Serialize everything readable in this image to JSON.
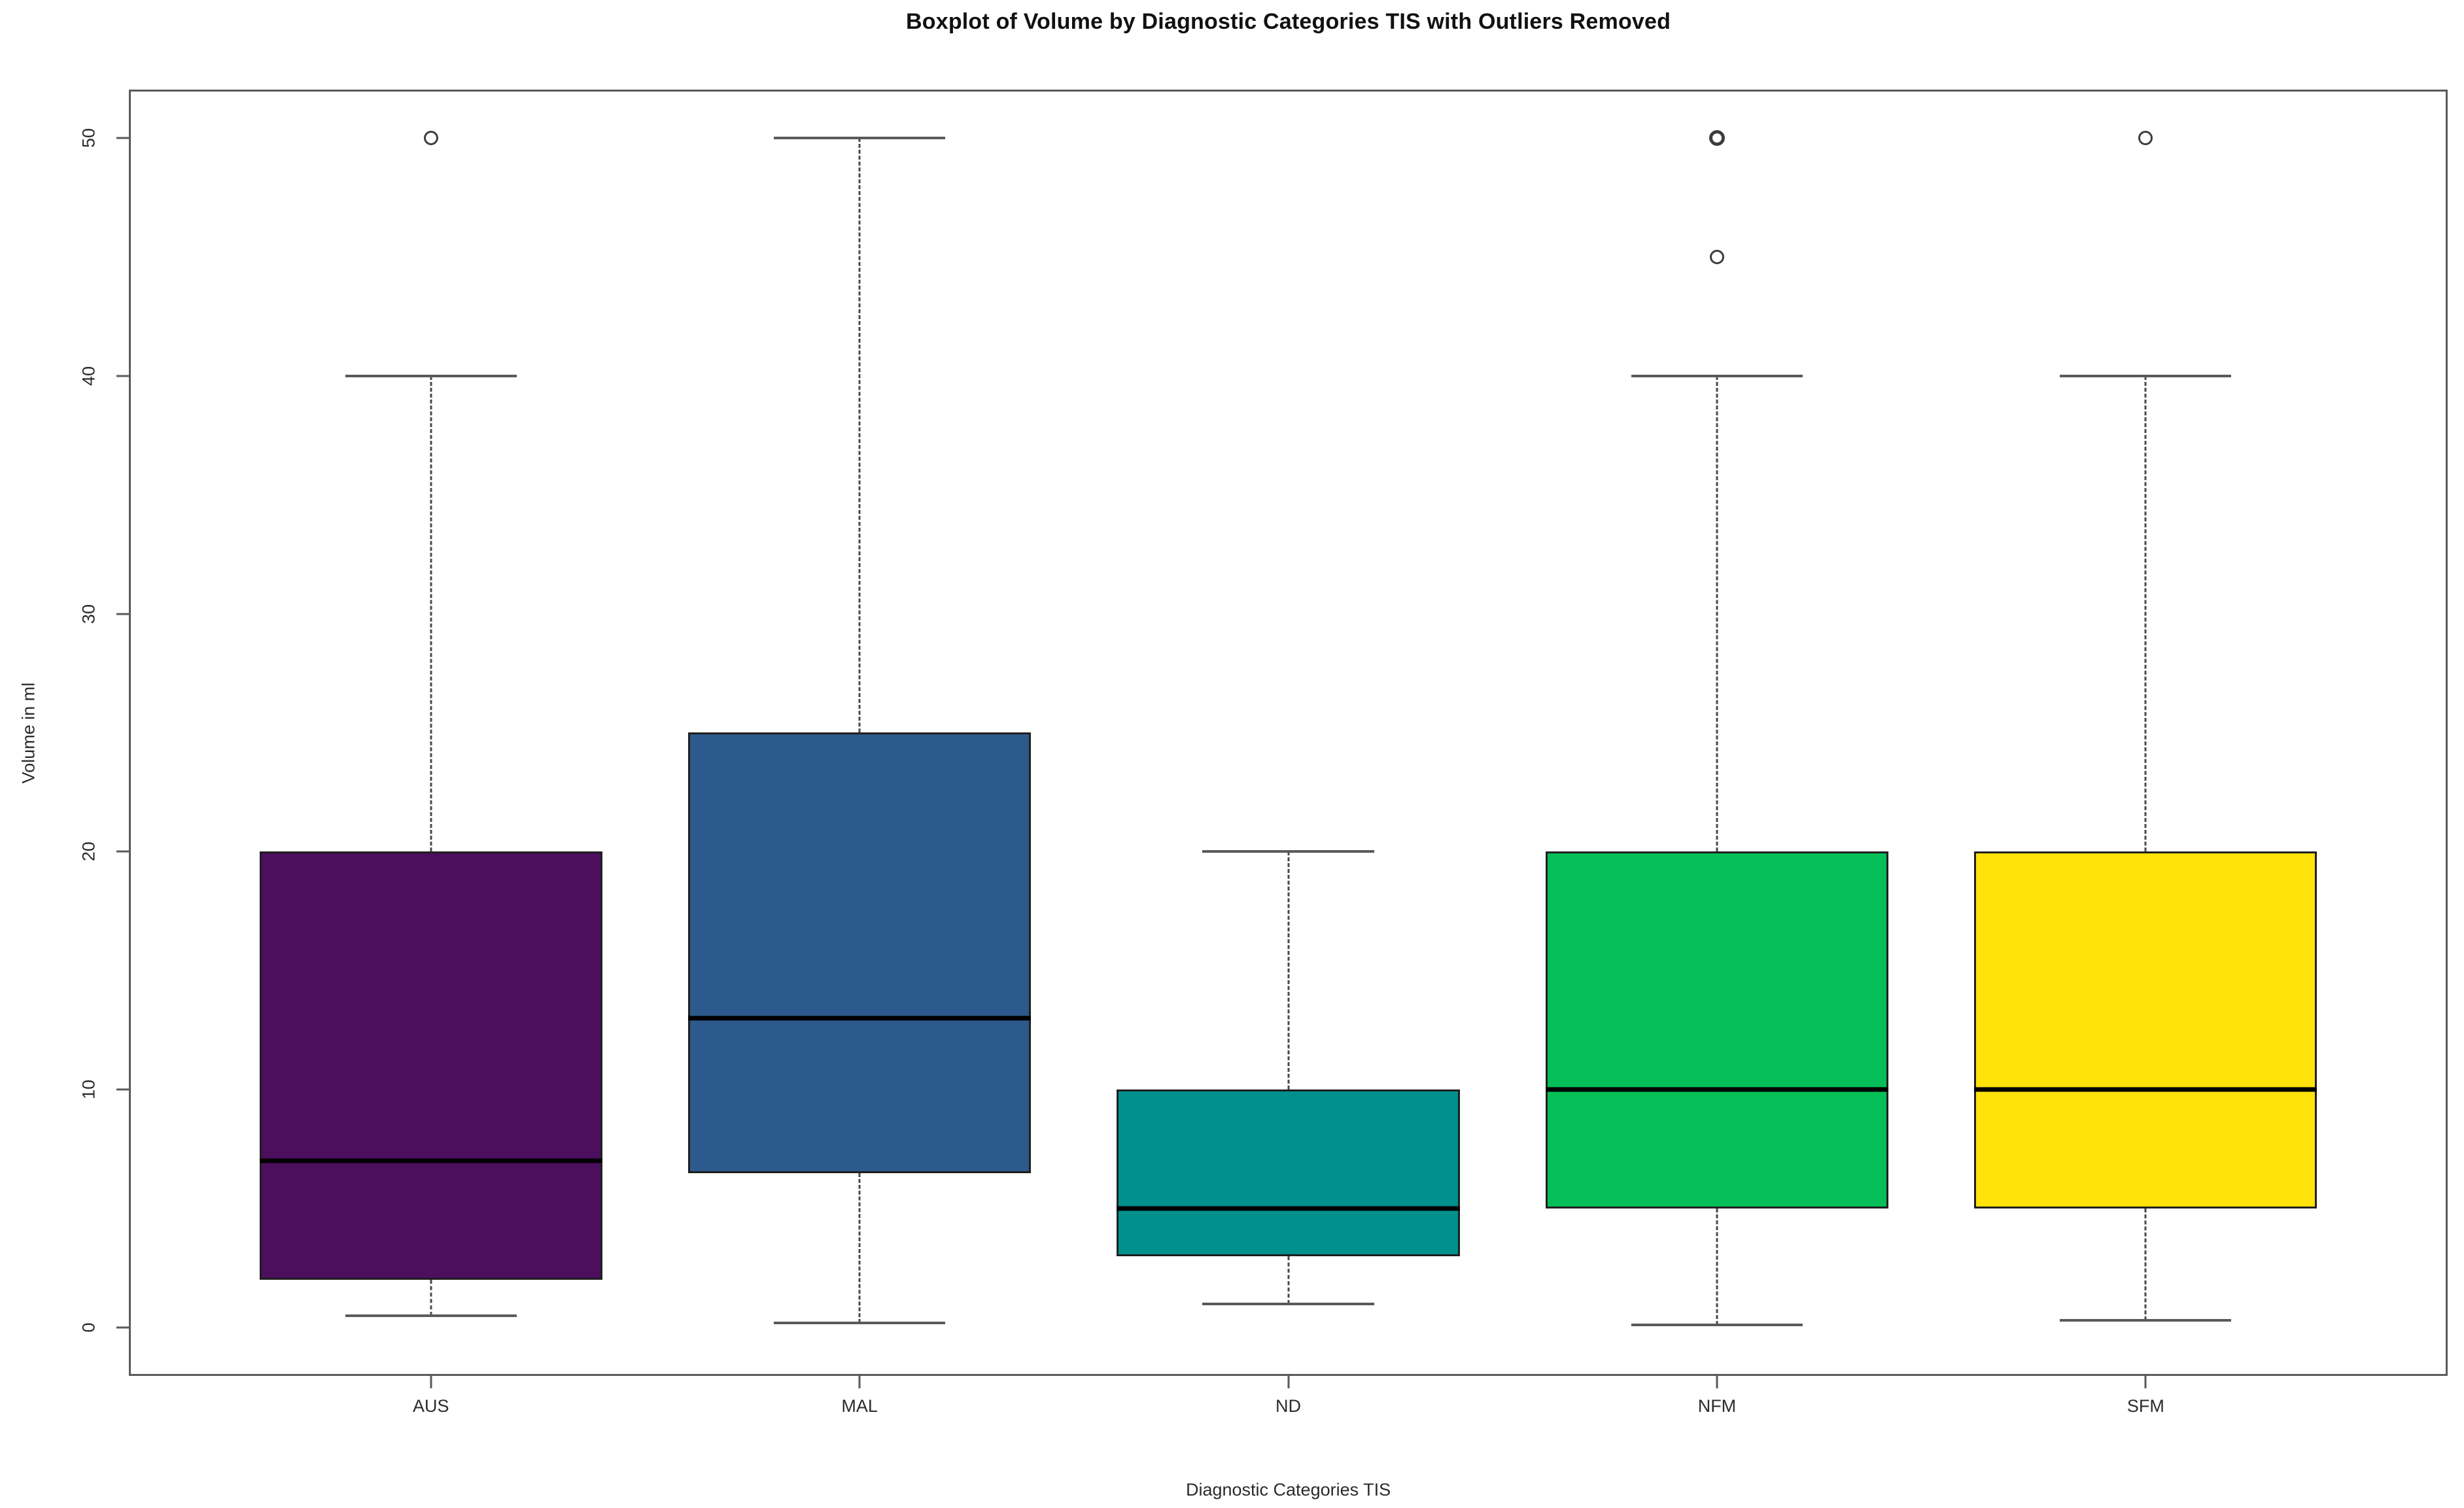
{
  "chart_data": {
    "type": "boxplot",
    "title": "Boxplot of Volume by Diagnostic Categories TIS with Outliers Removed",
    "xlabel": "Diagnostic Categories TIS",
    "ylabel": "Volume in ml",
    "y_ticks": [
      0,
      10,
      20,
      30,
      40,
      50
    ],
    "ylim": [
      0,
      50
    ],
    "grid": false,
    "legend": null,
    "categories": [
      "AUS",
      "MAL",
      "ND",
      "NFM",
      "SFM"
    ],
    "series": [
      {
        "label": "AUS",
        "color": "#4B0F5E",
        "whisker_low": 0.5,
        "q1": 2,
        "median": 7,
        "q3": 20,
        "whisker_high": 40,
        "outliers": [
          {
            "value": 50,
            "bold": false
          }
        ]
      },
      {
        "label": "MAL",
        "color": "#2D5A8C",
        "whisker_low": 0.2,
        "q1": 6.5,
        "median": 13,
        "q3": 25,
        "whisker_high": 50,
        "outliers": []
      },
      {
        "label": "ND",
        "color": "#00918C",
        "whisker_low": 1,
        "q1": 3,
        "median": 5,
        "q3": 10,
        "whisker_high": 20,
        "outliers": []
      },
      {
        "label": "NFM",
        "color": "#06BE57",
        "whisker_low": 0.1,
        "q1": 5,
        "median": 10,
        "q3": 20,
        "whisker_high": 40,
        "outliers": [
          {
            "value": 45,
            "bold": false
          },
          {
            "value": 50,
            "bold": true
          }
        ]
      },
      {
        "label": "SFM",
        "color": "#FFE20A",
        "whisker_low": 0.3,
        "q1": 5,
        "median": 10,
        "q3": 20,
        "whisker_high": 40,
        "outliers": [
          {
            "value": 50,
            "bold": false
          }
        ]
      }
    ]
  }
}
